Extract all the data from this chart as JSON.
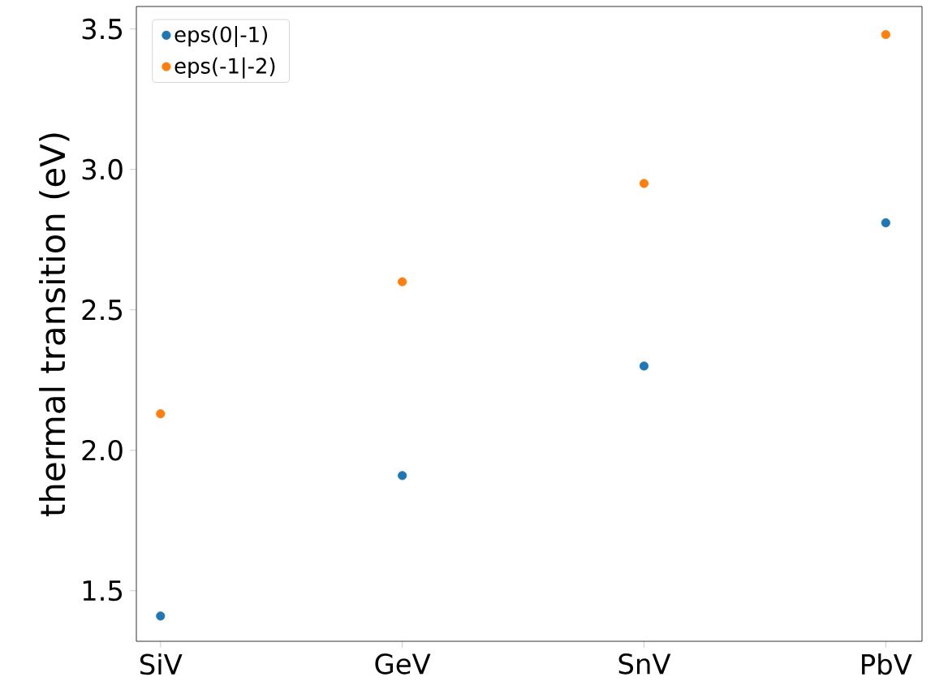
{
  "chart_data": {
    "type": "scatter",
    "ylabel": "thermal transition (eV)",
    "categories": [
      "SiV",
      "GeV",
      "SnV",
      "PbV"
    ],
    "series": [
      {
        "name": "eps(0|-1)",
        "color": "#1f77b4",
        "values": [
          1.41,
          1.91,
          2.3,
          2.81
        ]
      },
      {
        "name": "eps(-1|-2)",
        "color": "#ff7f0e",
        "values": [
          2.13,
          2.6,
          2.95,
          3.48
        ]
      }
    ],
    "ylim": [
      1.32,
      3.58
    ],
    "yticks": [
      {
        "value": 1.5,
        "label": "1.5"
      },
      {
        "value": 2.0,
        "label": "2.0"
      },
      {
        "value": 2.5,
        "label": "2.5"
      },
      {
        "value": 3.0,
        "label": "3.0"
      },
      {
        "value": 3.5,
        "label": "3.5"
      }
    ],
    "marker": "circle",
    "legend": "top left",
    "grid": false
  }
}
